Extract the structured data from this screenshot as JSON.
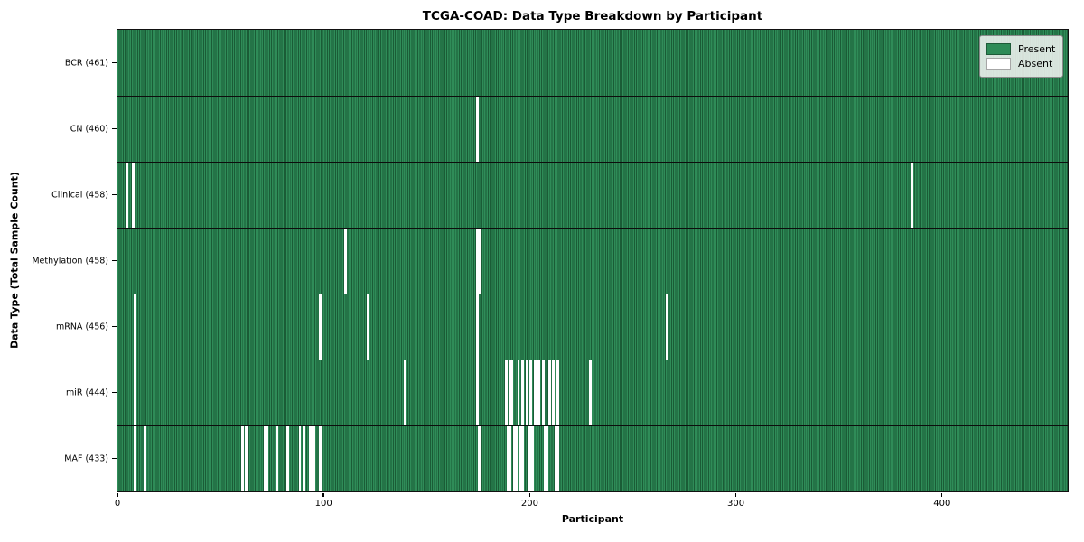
{
  "chart_data": {
    "type": "heatmap",
    "title": "TCGA-COAD: Data Type Breakdown by Participant",
    "xlabel": "Participant",
    "ylabel": "Data Type (Total Sample Count)",
    "n_participants": 461,
    "x_ticks": [
      0,
      100,
      200,
      300,
      400
    ],
    "legend_position": "upper right",
    "grid": false,
    "colors": {
      "present": "#2e8b57",
      "present_stripe_dark": "#1a5c36",
      "absent": "#ffffff",
      "separator": "#0d0d0d"
    },
    "legend": [
      {
        "label": "Present",
        "color": "#2e8b57"
      },
      {
        "label": "Absent",
        "color": "#ffffff"
      }
    ],
    "rows": [
      {
        "label": "BCR (461)",
        "name": "BCR",
        "total": 461,
        "absent": []
      },
      {
        "label": "CN (460)",
        "name": "CN",
        "total": 460,
        "absent": [
          174
        ]
      },
      {
        "label": "Clinical (458)",
        "name": "Clinical",
        "total": 458,
        "absent": [
          4,
          7,
          385
        ]
      },
      {
        "label": "Methylation (458)",
        "name": "Methylation",
        "total": 458,
        "absent": [
          110,
          174,
          175
        ]
      },
      {
        "label": "mRNA (456)",
        "name": "mRNA",
        "total": 456,
        "absent": [
          8,
          98,
          121,
          174,
          266
        ]
      },
      {
        "label": "miR (444)",
        "name": "miR",
        "total": 444,
        "absent": [
          8,
          139,
          174,
          188,
          190,
          191,
          194,
          196,
          198,
          200,
          202,
          204,
          206,
          209,
          211,
          213,
          229
        ]
      },
      {
        "label": "MAF (433)",
        "name": "MAF",
        "total": 433,
        "absent": [
          8,
          13,
          60,
          62,
          71,
          72,
          77,
          82,
          88,
          90,
          93,
          94,
          95,
          98,
          175,
          189,
          190,
          192,
          193,
          195,
          196,
          199,
          200,
          201,
          207,
          208,
          212,
          213
        ]
      }
    ]
  }
}
